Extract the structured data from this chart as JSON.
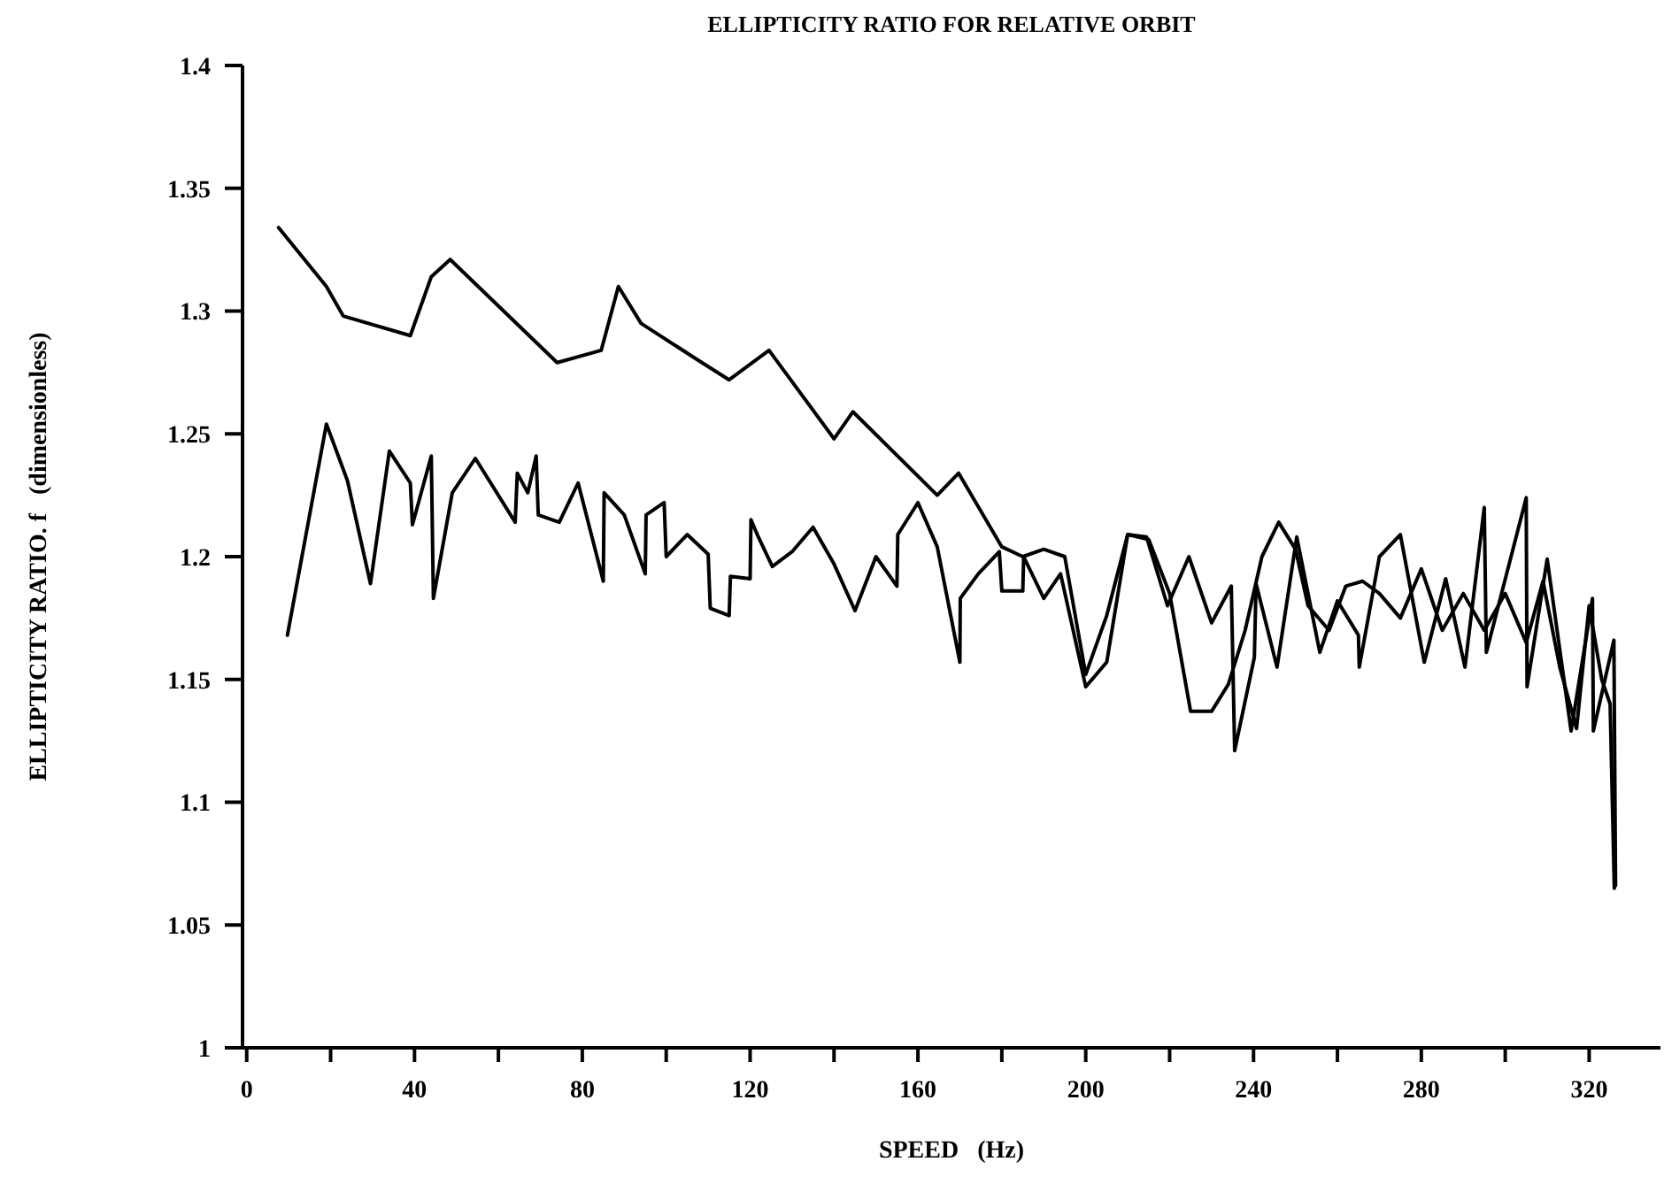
{
  "chart_data": {
    "type": "line",
    "title": "ELLIPTICITY RATIO FOR RELATIVE ORBIT",
    "xlabel": "SPEED   (Hz)",
    "ylabel": "ELLIPTICITY RATIO. f   (dimensionless)",
    "xlim": [
      -1,
      337
    ],
    "ylim": [
      1,
      1.4
    ],
    "xticks": [
      0,
      {
        "value": 20,
        "label": null
      },
      40,
      {
        "value": 60,
        "label": null
      },
      80,
      {
        "value": 100,
        "label": null
      },
      120,
      {
        "value": 140,
        "label": null
      },
      160,
      {
        "value": 180,
        "label": null
      },
      200,
      {
        "value": 220,
        "label": null
      },
      240,
      {
        "value": 260,
        "label": null
      },
      280,
      {
        "value": 300,
        "label": null
      },
      320
    ],
    "yticks": [
      1,
      1.05,
      1.1,
      1.15,
      1.2,
      1.25,
      1.3,
      1.35,
      1.4
    ],
    "grid": false,
    "marker": "none",
    "line_style": "solid",
    "series": [
      {
        "color": "#000000",
        "x": [
          7.6,
          19,
          23,
          39,
          44,
          48.5,
          74,
          84.5,
          88.6,
          94,
          108.5,
          115,
          124.5,
          140,
          144.5,
          164.6,
          169.7,
          180,
          185,
          190,
          195,
          200,
          205,
          210,
          215,
          220,
          225,
          230,
          234,
          238,
          242,
          246,
          250,
          253,
          258,
          262,
          266,
          270,
          275,
          280,
          285,
          290,
          295,
          300,
          305,
          309,
          313,
          317,
          320,
          323,
          325,
          326
        ],
        "values": [
          1.334,
          1.31,
          1.298,
          1.29,
          1.314,
          1.321,
          1.279,
          1.284,
          1.31,
          1.295,
          1.279,
          1.272,
          1.284,
          1.248,
          1.259,
          1.225,
          1.234,
          1.204,
          1.2,
          1.203,
          1.2,
          1.152,
          1.176,
          1.209,
          1.207,
          1.185,
          1.137,
          1.137,
          1.148,
          1.17,
          1.2,
          1.214,
          1.203,
          1.18,
          1.17,
          1.188,
          1.19,
          1.185,
          1.175,
          1.195,
          1.17,
          1.185,
          1.17,
          1.185,
          1.165,
          1.19,
          1.155,
          1.13,
          1.18,
          1.15,
          1.14,
          1.065
        ]
      },
      {
        "color": "#000000",
        "x": [
          9.7,
          19,
          24,
          29.5,
          34,
          39,
          39.5,
          44,
          44.5,
          49,
          54.5,
          64,
          64.5,
          67,
          69,
          69.5,
          74.5,
          79,
          85,
          85.2,
          90,
          95,
          95.2,
          99.5,
          100,
          105,
          110,
          110.5,
          115,
          115.3,
          120,
          120.2,
          121.7,
          125.3,
          130,
          135,
          140,
          145,
          150,
          155,
          155.2,
          160,
          164.6,
          170,
          170.1,
          174.4,
          179.4,
          180,
          185,
          185.2,
          190,
          194,
          200,
          205,
          210,
          214.5,
          219.5,
          224.6,
          230,
          234.7,
          235.5,
          240.2,
          240.6,
          245.6,
          250.3,
          255.8,
          260,
          265,
          265.2,
          270,
          275,
          280.7,
          285.8,
          290.4,
          295,
          295.5,
          305,
          305.2,
          310,
          315.7,
          320.8,
          321,
          325.9,
          326.3
        ],
        "values": [
          1.168,
          1.254,
          1.231,
          1.189,
          1.243,
          1.23,
          1.213,
          1.241,
          1.183,
          1.226,
          1.24,
          1.214,
          1.234,
          1.226,
          1.241,
          1.217,
          1.214,
          1.23,
          1.19,
          1.226,
          1.217,
          1.193,
          1.217,
          1.222,
          1.2,
          1.209,
          1.201,
          1.179,
          1.176,
          1.192,
          1.191,
          1.215,
          1.209,
          1.196,
          1.202,
          1.212,
          1.197,
          1.178,
          1.2,
          1.188,
          1.209,
          1.222,
          1.204,
          1.157,
          1.183,
          1.193,
          1.202,
          1.186,
          1.186,
          1.2,
          1.183,
          1.193,
          1.147,
          1.157,
          1.209,
          1.208,
          1.18,
          1.2,
          1.173,
          1.188,
          1.121,
          1.159,
          1.189,
          1.155,
          1.208,
          1.161,
          1.182,
          1.168,
          1.155,
          1.2,
          1.209,
          1.157,
          1.191,
          1.155,
          1.22,
          1.161,
          1.224,
          1.147,
          1.199,
          1.129,
          1.183,
          1.129,
          1.166,
          1.066
        ]
      }
    ]
  }
}
